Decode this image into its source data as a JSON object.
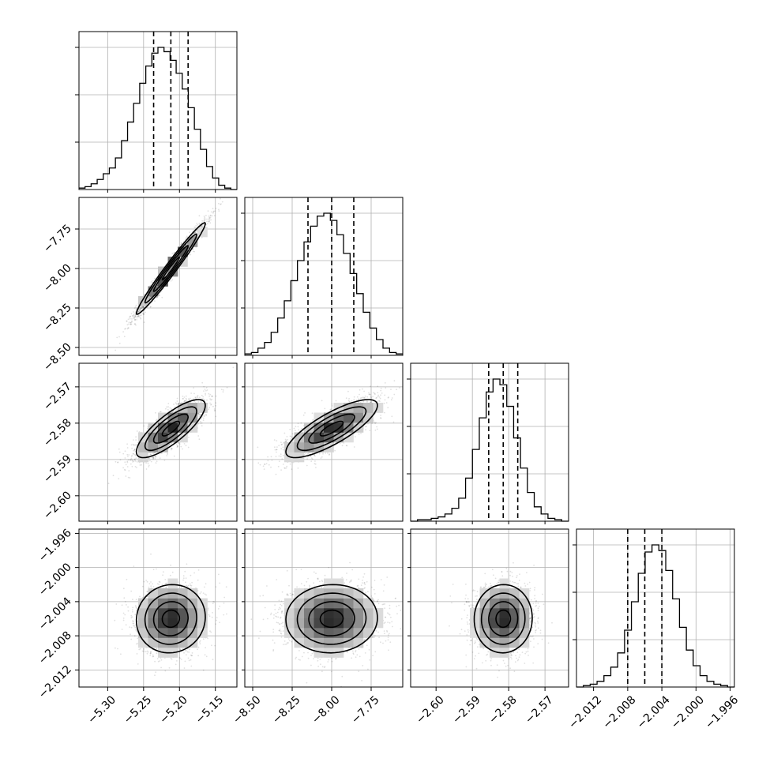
{
  "chart_data": {
    "type": "corner",
    "grid": true,
    "parameters": [
      {
        "range": [
          -5.34,
          -5.12
        ],
        "ticks": [
          -5.3,
          -5.25,
          -5.2,
          -5.15
        ],
        "tick_labels": [
          "−5.30",
          "−5.25",
          "−5.20",
          "−5.15"
        ],
        "quantiles": [
          -5.236,
          -5.212,
          -5.188
        ],
        "histogram": [
          1,
          2,
          4,
          7,
          11,
          15,
          22,
          34,
          47,
          60,
          74,
          86,
          95,
          99,
          96,
          90,
          81,
          70,
          57,
          42,
          28,
          16,
          8,
          3,
          1,
          0
        ]
      },
      {
        "range": [
          -8.55,
          -7.55
        ],
        "ticks": [
          -8.5,
          -8.25,
          -8.0,
          -7.75
        ],
        "tick_labels": [
          "−8.50",
          "−8.25",
          "−8.00",
          "−7.75"
        ],
        "quantiles": [
          -8.15,
          -8.0,
          -7.86
        ],
        "histogram": [
          1,
          2,
          5,
          9,
          16,
          26,
          38,
          52,
          66,
          79,
          90,
          97,
          99,
          94,
          84,
          71,
          57,
          43,
          30,
          19,
          11,
          5,
          2,
          1
        ]
      },
      {
        "range": [
          -2.607,
          -2.5635
        ],
        "ticks": [
          -2.6,
          -2.59,
          -2.58,
          -2.57
        ],
        "tick_labels": [
          "−2.60",
          "−2.59",
          "−2.58",
          "−2.57"
        ],
        "quantiles": [
          -2.5855,
          -2.5815,
          -2.5775
        ],
        "histogram": [
          0,
          1,
          1,
          2,
          3,
          5,
          9,
          16,
          30,
          50,
          72,
          90,
          99,
          95,
          80,
          58,
          37,
          20,
          10,
          5,
          2,
          1,
          0
        ]
      },
      {
        "range": [
          -2.014,
          -1.9955
        ],
        "ticks": [
          -2.012,
          -2.008,
          -2.004,
          -2.0,
          -1.996
        ],
        "tick_labels": [
          "−2.012",
          "−2.008",
          "−2.004",
          "−2.000",
          "−1.996"
        ],
        "quantiles": [
          -2.008,
          -2.006,
          -2.004
        ],
        "histogram": [
          0,
          1,
          2,
          4,
          8,
          14,
          24,
          40,
          60,
          80,
          95,
          100,
          96,
          82,
          62,
          42,
          26,
          15,
          8,
          4,
          2,
          1,
          0
        ]
      }
    ],
    "pairs": [
      {
        "row": 1,
        "col": 0,
        "rho": 0.98
      },
      {
        "row": 2,
        "col": 0,
        "rho": 0.8
      },
      {
        "row": 2,
        "col": 1,
        "rho": 0.8
      },
      {
        "row": 3,
        "col": 0,
        "rho": 0.05
      },
      {
        "row": 3,
        "col": 1,
        "rho": 0.03
      },
      {
        "row": 3,
        "col": 2,
        "rho": 0.02
      }
    ],
    "contour_levels_sigma": [
      0.5,
      1.0,
      1.5,
      2.0
    ],
    "sample_count": 2200
  }
}
